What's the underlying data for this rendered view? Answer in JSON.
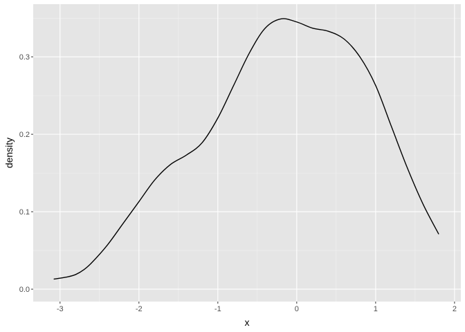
{
  "chart_data": {
    "type": "line",
    "title": "",
    "xlabel": "x",
    "ylabel": "density",
    "xlim": [
      -3.34,
      2.08
    ],
    "ylim": [
      -0.016,
      0.368
    ],
    "grid": true,
    "x_ticks": [
      -3,
      -2,
      -1,
      0,
      1,
      2
    ],
    "x_tick_labels": [
      "-3",
      "-2",
      "-1",
      "0",
      "1",
      "2"
    ],
    "y_ticks": [
      0.0,
      0.1,
      0.2,
      0.3
    ],
    "y_tick_labels": [
      "0.0",
      "0.1",
      "0.2",
      "0.3"
    ],
    "series": [
      {
        "x": [
          -3.08,
          -2.9,
          -2.8,
          -2.7,
          -2.6,
          -2.4,
          -2.2,
          -2.0,
          -1.8,
          -1.6,
          -1.4,
          -1.2,
          -1.0,
          -0.8,
          -0.6,
          -0.4,
          -0.2,
          0.0,
          0.2,
          0.4,
          0.6,
          0.8,
          1.0,
          1.2,
          1.4,
          1.6,
          1.8
        ],
        "y": [
          0.013,
          0.016,
          0.019,
          0.025,
          0.034,
          0.057,
          0.085,
          0.113,
          0.141,
          0.161,
          0.173,
          0.189,
          0.221,
          0.263,
          0.305,
          0.337,
          0.349,
          0.345,
          0.337,
          0.333,
          0.323,
          0.3,
          0.263,
          0.21,
          0.157,
          0.11,
          0.071
        ]
      }
    ],
    "colors": {
      "panel": "#e5e5e5",
      "grid": "#ffffff",
      "line": "#000000",
      "text": "#4d4d4d"
    }
  }
}
